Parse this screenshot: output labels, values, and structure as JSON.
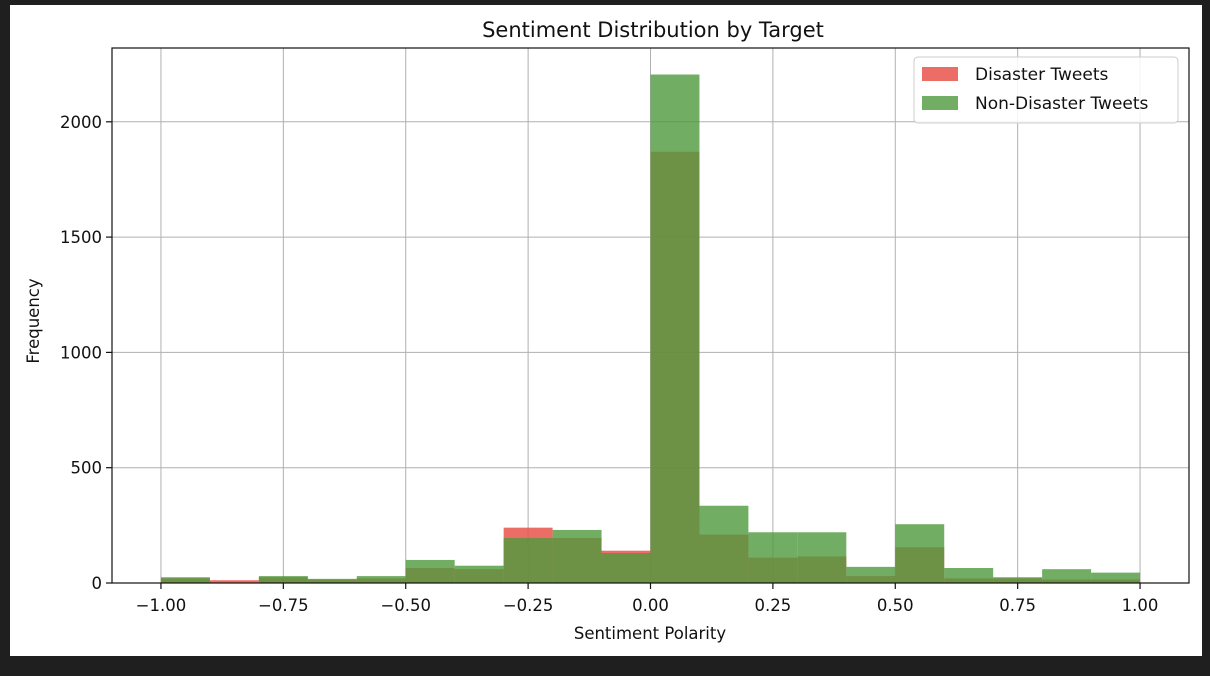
{
  "chart_data": {
    "type": "bar",
    "title": "Sentiment Distribution by Target",
    "xlabel": "Sentiment Polarity",
    "ylabel": "Frequency",
    "xlim": [
      -1.1,
      1.1
    ],
    "ylim": [
      0,
      2320
    ],
    "xticks": [
      "−1.00",
      "−0.75",
      "−0.50",
      "−0.25",
      "0.00",
      "0.25",
      "0.50",
      "0.75",
      "1.00"
    ],
    "xtick_values": [
      -1.0,
      -0.75,
      -0.5,
      -0.25,
      0.0,
      0.25,
      0.5,
      0.75,
      1.0
    ],
    "yticks": [
      "0",
      "500",
      "1000",
      "1500",
      "2000"
    ],
    "ytick_values": [
      0,
      500,
      1000,
      1500,
      2000
    ],
    "grid": true,
    "legend_position": "top-right",
    "bin_edges": [
      -1.0,
      -0.9,
      -0.8,
      -0.7,
      -0.6,
      -0.5,
      -0.4,
      -0.3,
      -0.2,
      -0.1,
      0.0,
      0.1,
      0.2,
      0.3,
      0.4,
      0.5,
      0.6,
      0.7,
      0.8,
      0.9,
      1.0
    ],
    "series": [
      {
        "name": "Disaster Tweets",
        "color": "#e8534a",
        "values": [
          20,
          12,
          25,
          15,
          20,
          65,
          60,
          240,
          195,
          140,
          1870,
          210,
          110,
          115,
          30,
          155,
          20,
          20,
          15,
          15
        ]
      },
      {
        "name": "Non-Disaster Tweets",
        "color": "#4d9a3d",
        "values": [
          25,
          0,
          30,
          18,
          30,
          100,
          75,
          195,
          230,
          130,
          2205,
          335,
          220,
          220,
          70,
          255,
          65,
          25,
          60,
          45
        ]
      }
    ]
  },
  "colors": {
    "disaster": "#e8534a",
    "non_disaster": "#4d9a3d",
    "grid": "#b0b0b0",
    "background": "#1f1f1f"
  }
}
